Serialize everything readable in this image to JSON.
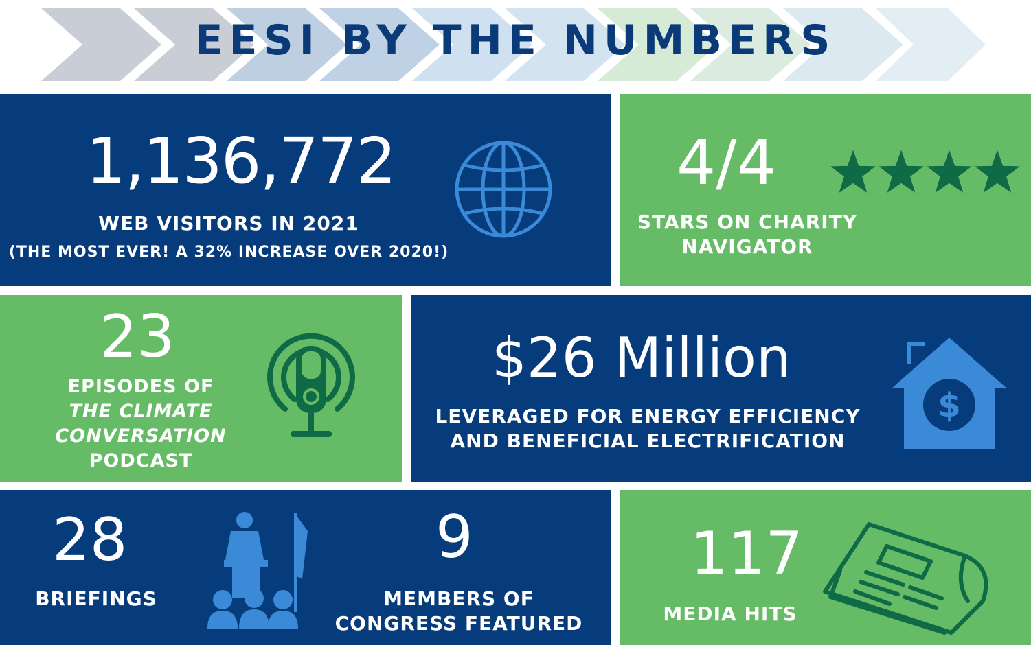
{
  "header": {
    "title": "EESI BY THE NUMBERS"
  },
  "colors": {
    "navy": "#063b7c",
    "green": "#66bb66",
    "dark_green": "#0f6b46",
    "icon_blue": "#3b8ad8",
    "title": "#0b3a78"
  },
  "stats": {
    "web": {
      "value": "1,136,772",
      "label": "WEB VISITORS IN 2021",
      "note": "(THE MOST EVER! A 32% INCREASE OVER 2020!)",
      "icon": "globe-icon"
    },
    "charity": {
      "value": "4/4",
      "label_line1": "STARS ON CHARITY",
      "label_line2": "NAVIGATOR",
      "stars_filled": 4,
      "stars_total": 4,
      "icon": "star-icon"
    },
    "podcast": {
      "value": "23",
      "line1": "EPISODES OF",
      "line2": "THE CLIMATE",
      "line3": "CONVERSATION",
      "line4": "PODCAST",
      "icon": "microphone-icon"
    },
    "funding": {
      "value": "$26 Million",
      "label_line1": "LEVERAGED FOR ENERGY EFFICIENCY",
      "label_line2": "AND BENEFICIAL ELECTRIFICATION",
      "icon": "house-dollar-icon"
    },
    "briefings": {
      "value": "28",
      "label": "BRIEFINGS",
      "icon": "podium-speaker-icon"
    },
    "congress": {
      "value": "9",
      "label_line1": "MEMBERS OF",
      "label_line2": "CONGRESS FEATURED"
    },
    "media": {
      "value": "117",
      "label": "MEDIA HITS",
      "icon": "newspaper-icon"
    }
  }
}
